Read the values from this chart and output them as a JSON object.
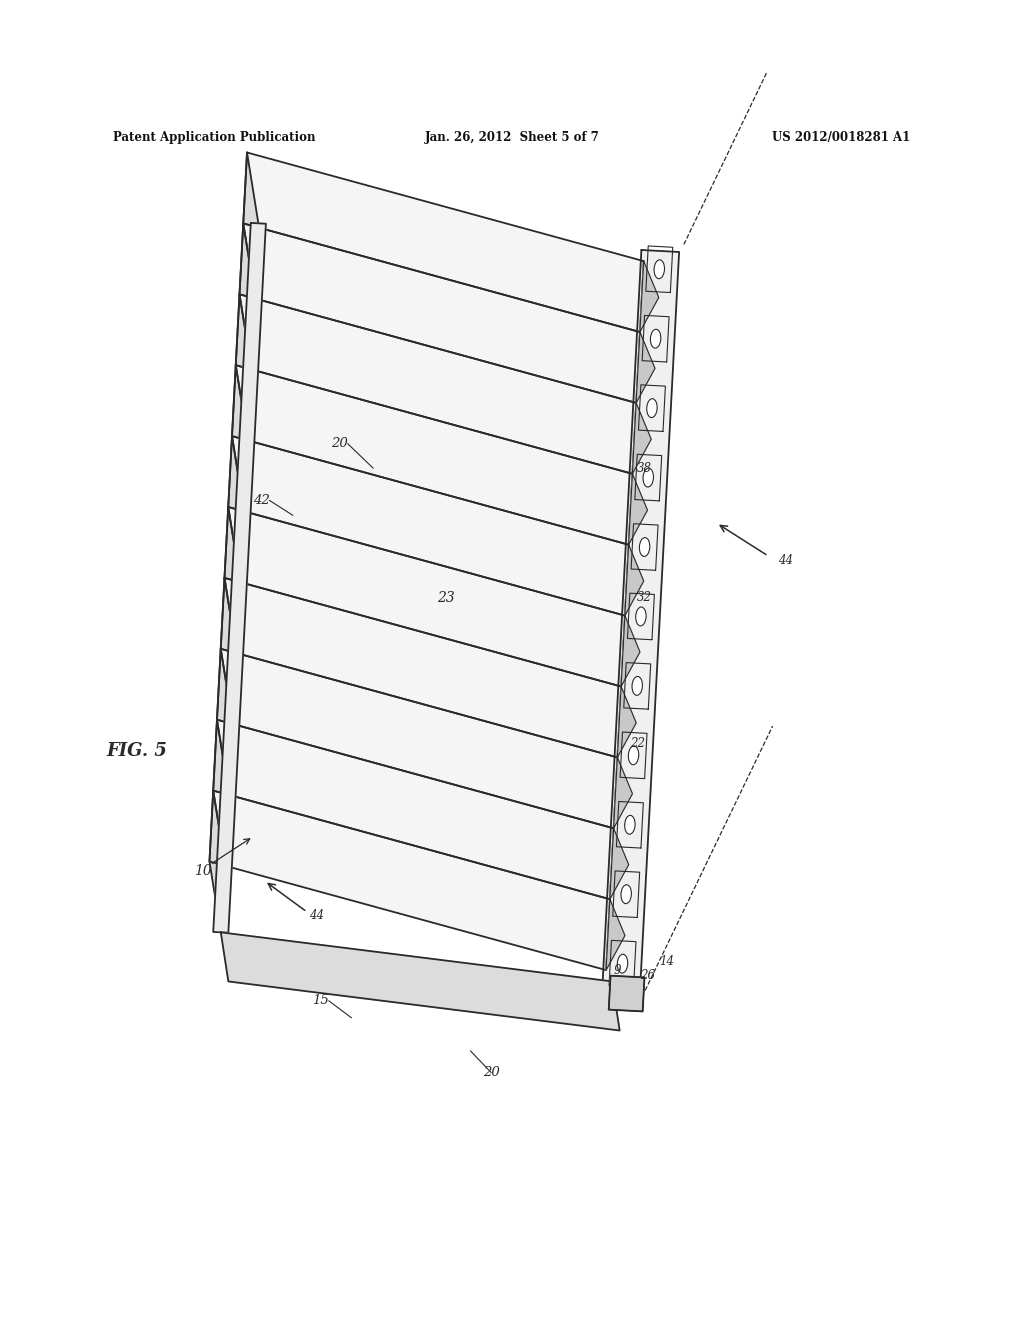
{
  "background_color": "#ffffff",
  "header_left": "Patent Application Publication",
  "header_center": "Jan. 26, 2012  Sheet 5 of 7",
  "header_right": "US 2012/0018281 A1",
  "fig_label": "FIG. 5",
  "lc": "#2a2a2a",
  "spine_fill": "#f0f0f0",
  "slat_fill": "#f5f5f5",
  "fold_fill": "#dcdcdc",
  "shadow_fill": "#c8c8c8",
  "n_slats": 10,
  "n_holes": 11
}
